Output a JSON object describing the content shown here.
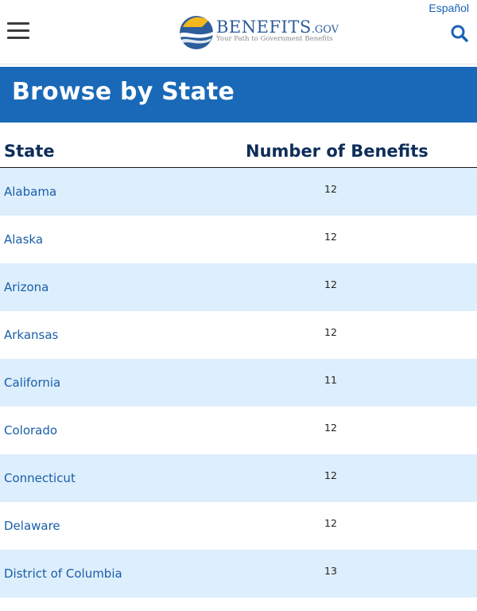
{
  "header": {
    "logo_main": "BENEFITS",
    "logo_tld": ".GOV",
    "logo_tagline": "Your Path to Government Benefits",
    "language_link": "Español",
    "menu_icon": "hamburger-menu-icon",
    "search_icon": "search-icon"
  },
  "banner": {
    "title": "Browse by State"
  },
  "table": {
    "columns": {
      "state": "State",
      "count": "Number of Benefits"
    },
    "rows": [
      {
        "state": "Alabama",
        "count": "12"
      },
      {
        "state": "Alaska",
        "count": "12"
      },
      {
        "state": "Arizona",
        "count": "12"
      },
      {
        "state": "Arkansas",
        "count": "12"
      },
      {
        "state": "California",
        "count": "11"
      },
      {
        "state": "Colorado",
        "count": "12"
      },
      {
        "state": "Connecticut",
        "count": "12"
      },
      {
        "state": "Delaware",
        "count": "12"
      },
      {
        "state": "District of Columbia",
        "count": "13"
      }
    ]
  },
  "colors": {
    "banner": "#1a69b8",
    "row_alt": "#ddeefc",
    "link": "#1a5ea8",
    "heading": "#0e2d5a"
  }
}
